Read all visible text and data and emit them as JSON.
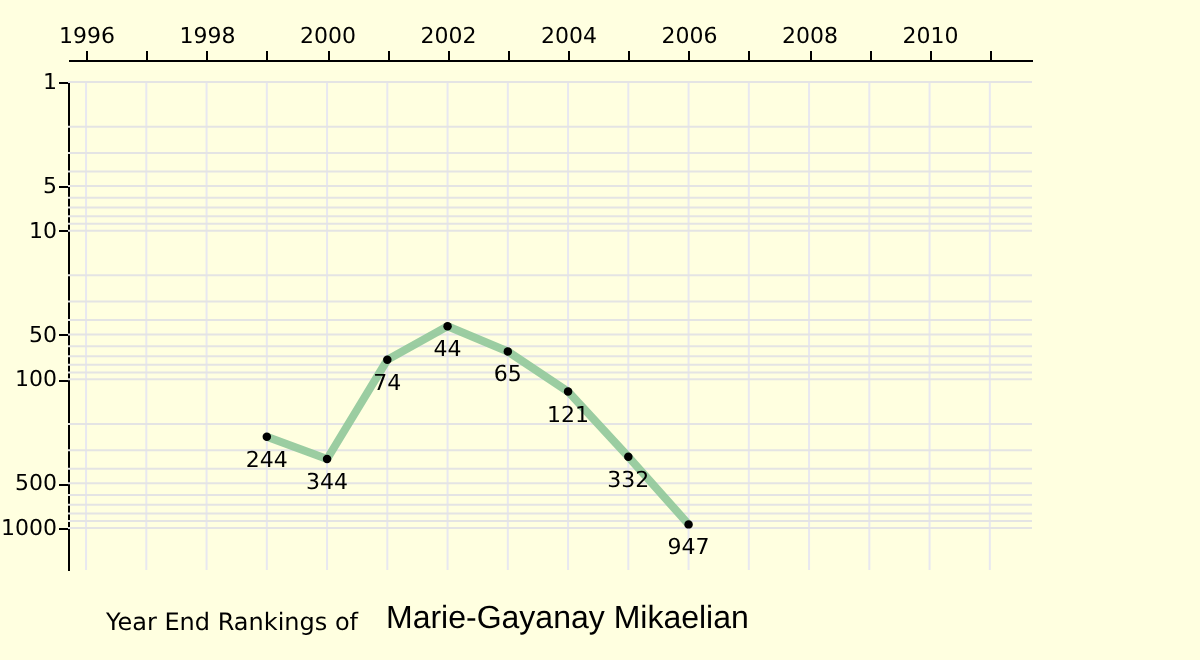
{
  "chart_data": {
    "type": "line",
    "title": "Year End Rankings of",
    "subtitle": "Marie-Gayanay Mikaelian",
    "x": [
      1999,
      2000,
      2001,
      2002,
      2003,
      2004,
      2005,
      2006
    ],
    "series": [
      {
        "color": "#90c89a",
        "values": [
          244,
          344,
          74,
          44,
          65,
          121,
          332,
          947
        ]
      }
    ],
    "data_labels": true,
    "marker": "circle",
    "line_style": "solid",
    "log": "y",
    "grid": true,
    "xlim": [
      1995.7,
      2011.7
    ],
    "xticks": [
      1996,
      {
        "value": 1997,
        "label": null
      },
      1998,
      {
        "value": 1999,
        "label": null
      },
      2000,
      {
        "value": 2001,
        "label": null
      },
      2002,
      {
        "value": 2003,
        "label": null
      },
      2004,
      {
        "value": 2005,
        "label": null
      },
      2006,
      {
        "value": 2007,
        "label": null
      },
      2008,
      {
        "value": 2009,
        "label": null
      },
      2010,
      {
        "value": 2011,
        "label": null
      }
    ],
    "ylim": [
      1920,
      1
    ],
    "yticks": [
      1,
      {
        "value": 2,
        "label": null
      },
      {
        "value": 3,
        "label": null
      },
      {
        "value": 4,
        "label": null
      },
      5,
      {
        "value": 6,
        "label": null
      },
      {
        "value": 7,
        "label": null
      },
      {
        "value": 8,
        "label": null
      },
      {
        "value": 9,
        "label": null
      },
      10,
      {
        "value": 20,
        "label": null
      },
      {
        "value": 30,
        "label": null
      },
      {
        "value": 40,
        "label": null
      },
      50,
      {
        "value": 60,
        "label": null
      },
      {
        "value": 70,
        "label": null
      },
      {
        "value": 80,
        "label": null
      },
      {
        "value": 90,
        "label": null
      },
      100,
      {
        "value": 200,
        "label": null
      },
      {
        "value": 300,
        "label": null
      },
      {
        "value": 400,
        "label": null
      },
      500,
      {
        "value": 600,
        "label": null
      },
      {
        "value": 700,
        "label": null
      },
      {
        "value": 800,
        "label": null
      },
      {
        "value": 900,
        "label": null
      },
      1000
    ]
  }
}
